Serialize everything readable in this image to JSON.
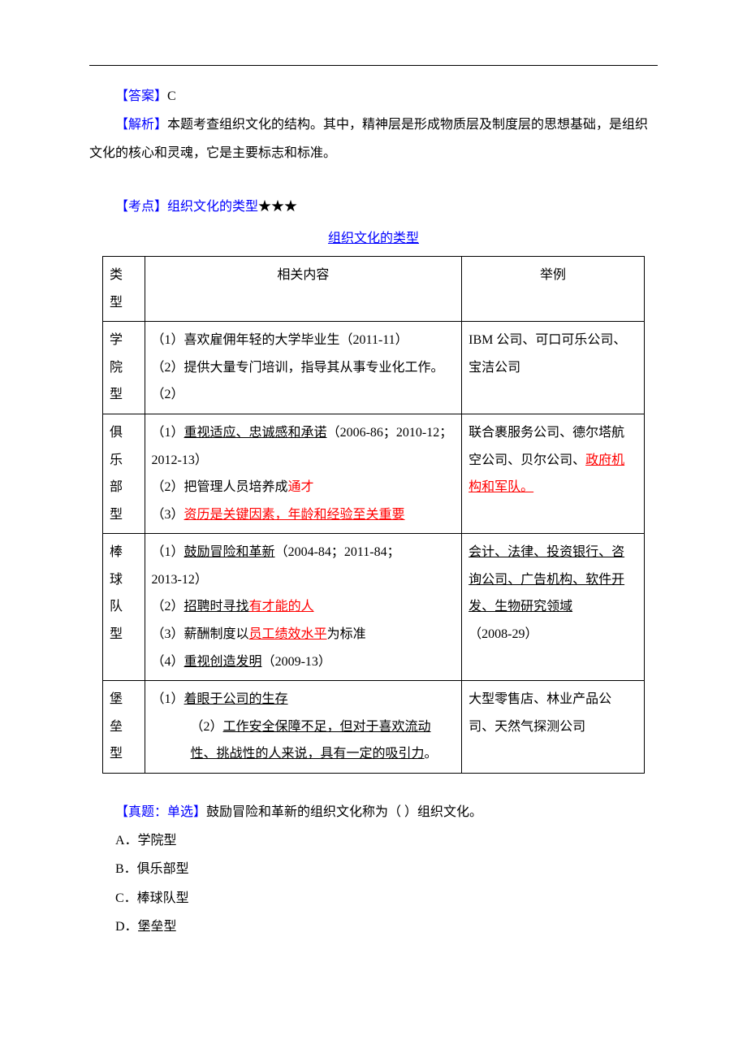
{
  "colors": {
    "blue": "#0000ff",
    "red": "#ff0000",
    "text": "#000000",
    "border": "#000000",
    "background": "#ffffff"
  },
  "typography": {
    "body_fontsize_pt": 12,
    "line_height": 2.2,
    "font_family": "SimSun"
  },
  "answer": {
    "label": "【答案】",
    "value": "C"
  },
  "analysis": {
    "label": "【解析】",
    "text": "本题考查组织文化的结构。其中，精神层是形成物质层及制度层的思想基础，是组织文化的核心和灵魂，它是主要标志和标准。"
  },
  "kaodian": {
    "label": "【考点】",
    "title": "组织文化的类型",
    "stars": "★★★"
  },
  "table_title": "组织文化的类型",
  "table": {
    "headers": {
      "type": "类型",
      "content": "相关内容",
      "example": "举例"
    },
    "header_type_chars": [
      "类",
      "型"
    ],
    "rows": [
      {
        "type_chars": [
          "学",
          "院",
          "型"
        ],
        "content_lines": [
          {
            "segs": [
              {
                "t": "（1）喜欢雇佣年轻的大学毕业生（2011-11）"
              }
            ]
          },
          {
            "segs": [
              {
                "t": "（2）提供大量专门培训，指导其从事专业化工作。"
              }
            ]
          },
          {
            "segs": [
              {
                "t": "（2）"
              }
            ]
          }
        ],
        "example_lines": [
          {
            "segs": [
              {
                "t": "IBM 公司、可口可乐公司、宝洁公司"
              }
            ]
          }
        ]
      },
      {
        "type_chars": [
          "俱",
          "乐",
          "部",
          "型"
        ],
        "content_lines": [
          {
            "segs": [
              {
                "t": "（1）"
              },
              {
                "t": "重视适应、忠诚感和承诺",
                "u": true
              },
              {
                "t": "（2006-86；2010-12；"
              }
            ]
          },
          {
            "segs": [
              {
                "t": "2012-13）"
              }
            ]
          },
          {
            "segs": [
              {
                "t": "（2）把管理人员培养成"
              },
              {
                "t": "通才",
                "red": true
              }
            ]
          },
          {
            "segs": [
              {
                "t": "（3）"
              },
              {
                "t": "资历是关键因素，年龄和经验至关重要",
                "red": true,
                "u": true
              }
            ]
          }
        ],
        "example_lines": [
          {
            "segs": [
              {
                "t": "联合裹服务公司、德尔塔航空公司、贝尔公司、"
              },
              {
                "t": "政府机构和军队。",
                "red": true,
                "u": true
              }
            ]
          }
        ]
      },
      {
        "type_chars": [
          "棒",
          "球",
          "队",
          "型"
        ],
        "content_lines": [
          {
            "segs": [
              {
                "t": "（1）"
              },
              {
                "t": "鼓励冒险和革新",
                "u": true
              },
              {
                "t": "（2004-84；2011-84；"
              }
            ]
          },
          {
            "segs": [
              {
                "t": "2013-12）"
              }
            ]
          },
          {
            "segs": [
              {
                "t": "（2）"
              },
              {
                "t": "招聘时寻找",
                "u": true
              },
              {
                "t": "有才能的人",
                "red": true,
                "u": true
              }
            ]
          },
          {
            "segs": [
              {
                "t": "（3）薪酬制度以"
              },
              {
                "t": "员工绩效水平",
                "red": true,
                "u": true
              },
              {
                "t": "为标准"
              }
            ]
          },
          {
            "segs": [
              {
                "t": "（4）"
              },
              {
                "t": "重视创造发明",
                "u": true
              },
              {
                "t": "（2009-13）"
              }
            ]
          }
        ],
        "example_lines": [
          {
            "segs": [
              {
                "t": "会计、法律、投资银行、咨询公司、广告机构、软件开发、生物研究领域",
                "u": true
              },
              {
                "t": "（2008-29）"
              }
            ]
          }
        ]
      },
      {
        "type_chars": [
          "堡",
          "垒",
          "型"
        ],
        "content_lines": [
          {
            "segs": [
              {
                "t": "（1）"
              },
              {
                "t": "着眼于公司的生存",
                "u": true
              }
            ]
          },
          {
            "indent": true,
            "segs": [
              {
                "t": "（2）"
              },
              {
                "t": "工作安全保障不足，但对于喜欢流动性、挑战性的人来说，具有一定的吸引力",
                "u": true
              },
              {
                "t": "。"
              }
            ]
          }
        ],
        "example_lines": [
          {
            "segs": [
              {
                "t": "大型零售店、林业产品公司、天然气探测公司"
              }
            ]
          }
        ]
      }
    ]
  },
  "question": {
    "label": "【真题：单选】",
    "stem": "鼓励冒险和革新的组织文化称为（   ）组织文化。",
    "options": {
      "A": "A．学院型",
      "B": "B．俱乐部型",
      "C": "C．棒球队型",
      "D": "D．堡垒型"
    }
  }
}
